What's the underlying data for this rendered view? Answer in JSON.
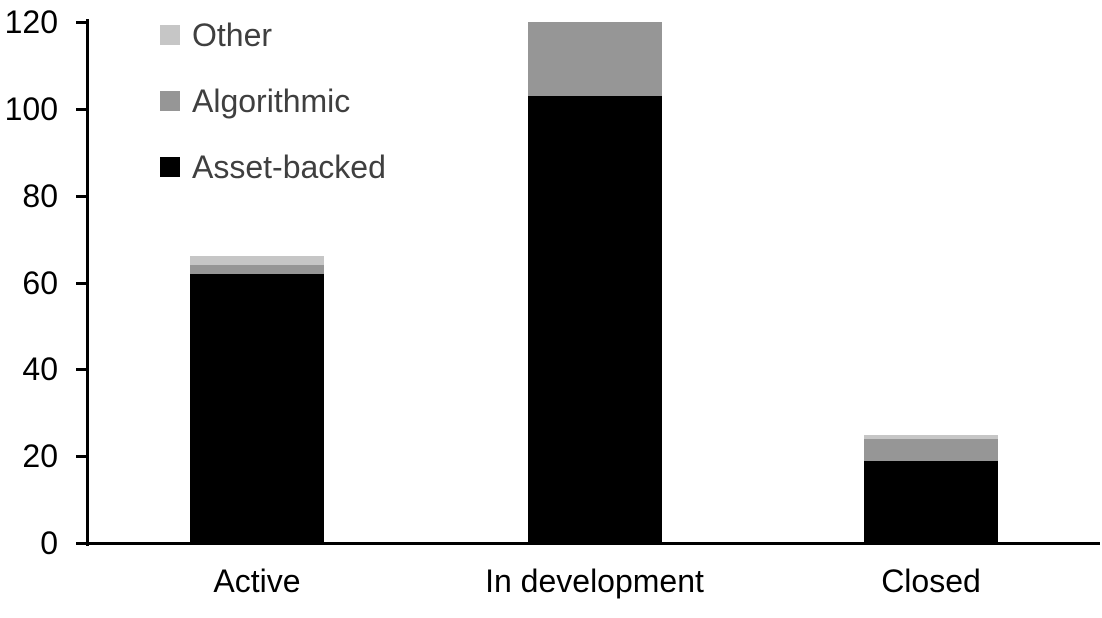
{
  "chart_data": {
    "type": "bar",
    "stacked": true,
    "title": "",
    "xlabel": "",
    "ylabel": "",
    "grid": false,
    "categories": [
      "Active",
      "In development",
      "Closed"
    ],
    "series": [
      {
        "name": "Asset-backed",
        "color": "#000000",
        "values": [
          62,
          103,
          19
        ]
      },
      {
        "name": "Algorithmic",
        "color": "#969696",
        "values": [
          2,
          17,
          5
        ]
      },
      {
        "name": "Other",
        "color": "#c6c6c6",
        "values": [
          2,
          0,
          1
        ]
      }
    ],
    "stack_totals": [
      66,
      120,
      25
    ],
    "y_axis": {
      "min": 0,
      "max": 120,
      "tick_step": 20,
      "tick_labels": [
        "0",
        "20",
        "40",
        "60",
        "80",
        "100",
        "120"
      ]
    },
    "legend": {
      "position": "top-left",
      "order_top_to_bottom": [
        "Other",
        "Algorithmic",
        "Asset-backed"
      ]
    },
    "colors": {
      "axis": "#000000",
      "tick_label_text": "#000000",
      "category_label_text": "#000000",
      "legend_text": "#3f3f3f",
      "background": "#ffffff"
    }
  }
}
